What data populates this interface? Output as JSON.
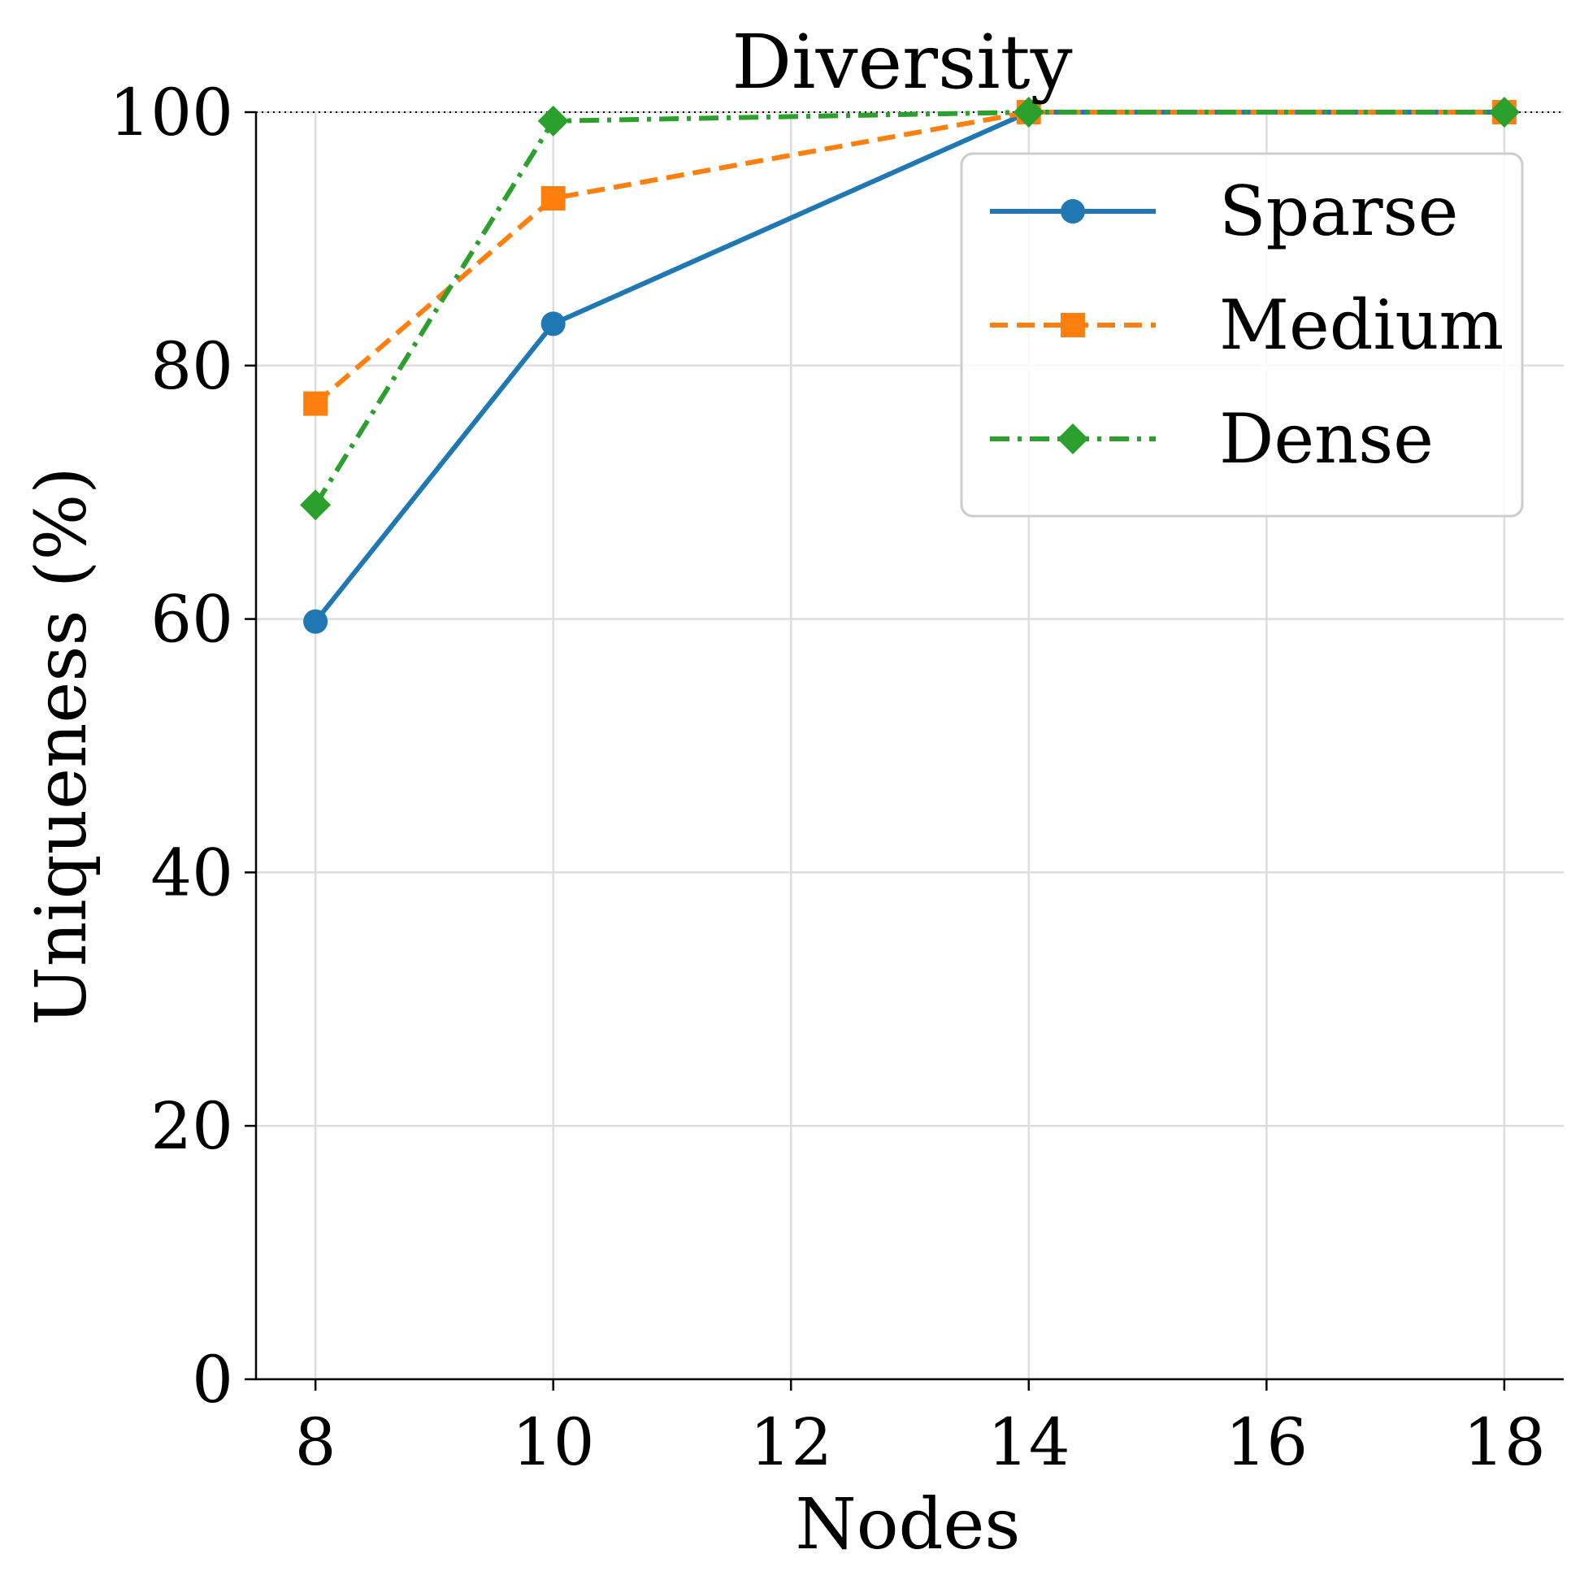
{
  "chart_data": {
    "type": "line",
    "title": "Diversity",
    "xlabel": "Nodes",
    "ylabel": "Uniqueness (%)",
    "x": [
      8,
      10,
      14,
      18
    ],
    "xticks": [
      8,
      10,
      12,
      14,
      16,
      18
    ],
    "yticks": [
      0,
      20,
      40,
      60,
      80,
      100
    ],
    "xlim": [
      7.5,
      18.5
    ],
    "ylim": [
      0,
      100
    ],
    "grid": true,
    "reference_line": {
      "y": 100,
      "style": "dotted",
      "color": "#000000"
    },
    "legend_position": "upper right",
    "series": [
      {
        "name": "Sparse",
        "values": [
          59.8,
          83.3,
          100,
          100
        ],
        "color": "#1f77b4",
        "dash": "solid",
        "marker": "circle"
      },
      {
        "name": "Medium",
        "values": [
          77.0,
          93.2,
          100,
          100
        ],
        "color": "#ff7f0e",
        "dash": "dashed",
        "marker": "square"
      },
      {
        "name": "Dense",
        "values": [
          69.0,
          99.3,
          100,
          100
        ],
        "color": "#2ca02c",
        "dash": "dashdot",
        "marker": "diamond"
      }
    ]
  }
}
